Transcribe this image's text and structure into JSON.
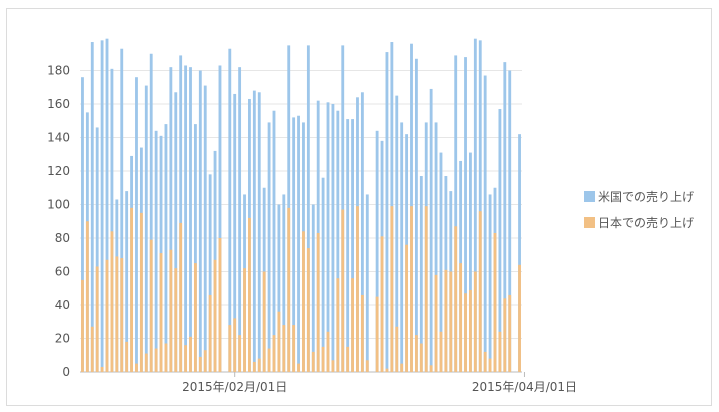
{
  "chart_data": {
    "type": "bar",
    "x_start": "2015-01-01",
    "x_end": "2015-04-30",
    "x_ticks": [
      {
        "date": "2015-02-01",
        "label": "2015年/02月/01日"
      },
      {
        "date": "2015-04-01",
        "label": "2015年/04月/01日"
      }
    ],
    "ylim": [
      0,
      200
    ],
    "yticks": [
      0,
      20,
      40,
      60,
      80,
      100,
      120,
      140,
      160,
      180
    ],
    "grid": true,
    "legend_position": "right",
    "series": [
      {
        "name": "米国での売り上げ",
        "color": "#9dc6ea",
        "values": [
          176,
          155,
          197,
          146,
          198,
          199,
          181,
          103,
          193,
          108,
          129,
          176,
          134,
          171,
          190,
          144,
          141,
          148,
          182,
          167,
          189,
          183,
          182,
          148,
          180,
          171,
          118,
          132,
          183,
          0,
          193,
          166,
          182,
          106,
          163,
          168,
          167,
          110,
          149,
          156,
          100,
          106,
          195,
          152,
          153,
          149,
          195,
          100,
          162,
          116,
          161,
          160,
          156,
          195,
          151,
          151,
          164,
          167,
          106,
          0,
          144,
          138,
          191,
          197,
          165,
          149,
          142,
          196,
          187,
          117,
          149,
          169,
          149,
          131,
          117,
          108,
          189,
          126,
          188,
          131,
          199,
          198,
          177,
          106,
          110,
          157,
          185,
          180,
          0,
          142
        ]
      },
      {
        "name": "日本での売り上げ",
        "color": "#f2c084",
        "values": [
          55,
          90,
          27,
          63,
          3,
          67,
          84,
          69,
          68,
          18,
          98,
          5,
          95,
          11,
          79,
          14,
          71,
          17,
          73,
          62,
          89,
          16,
          21,
          65,
          9,
          13,
          46,
          67,
          80,
          0,
          28,
          32,
          22,
          62,
          92,
          6,
          8,
          60,
          14,
          22,
          36,
          28,
          98,
          28,
          5,
          84,
          74,
          12,
          83,
          15,
          24,
          7,
          56,
          97,
          15,
          56,
          99,
          46,
          7,
          0,
          45,
          81,
          2,
          99,
          27,
          5,
          76,
          99,
          22,
          17,
          99,
          4,
          58,
          24,
          61,
          60,
          87,
          65,
          47,
          49,
          60,
          96,
          12,
          8,
          83,
          24,
          44,
          46,
          0,
          64
        ]
      }
    ]
  }
}
